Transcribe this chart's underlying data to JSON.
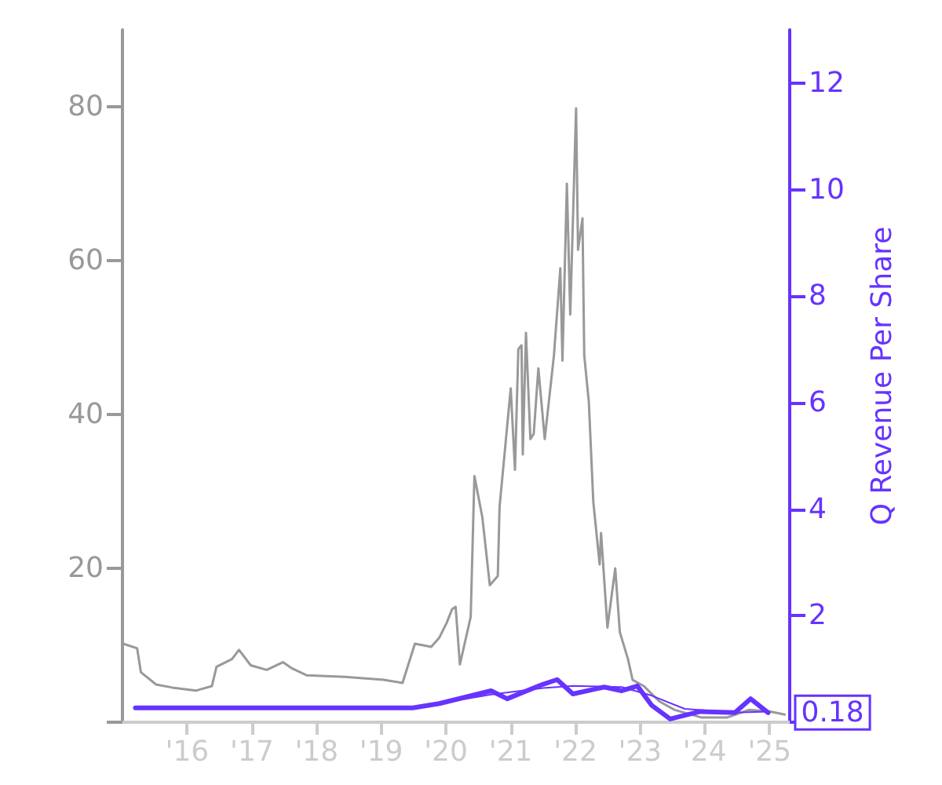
{
  "chart_data": {
    "type": "line",
    "y2label": "Q Revenue Per Share",
    "xlim": [
      "2015-01-01",
      "2025-04-25"
    ],
    "xticks": [
      {
        "value": "2016-01-01",
        "label": "'16"
      },
      {
        "value": "2017-01-01",
        "label": "'17"
      },
      {
        "value": "2018-01-01",
        "label": "'18"
      },
      {
        "value": "2019-01-01",
        "label": "'19"
      },
      {
        "value": "2020-01-01",
        "label": "'20"
      },
      {
        "value": "2021-01-01",
        "label": "'21"
      },
      {
        "value": "2022-01-01",
        "label": "'22"
      },
      {
        "value": "2023-01-01",
        "label": "'23"
      },
      {
        "value": "2024-01-01",
        "label": "'24"
      },
      {
        "value": "2025-01-01",
        "label": "'25"
      }
    ],
    "ylim": [
      0,
      90
    ],
    "yticks": [
      {
        "value": 0,
        "label": null
      },
      20,
      40,
      60,
      80
    ],
    "y2lim": [
      0,
      13
    ],
    "y2ticks": [
      {
        "value": 0,
        "label": null
      },
      2,
      4,
      6,
      8,
      10,
      12
    ],
    "grid": false,
    "marker": "none",
    "series": [
      {
        "color": "#999999",
        "x": [
          "2015-01-05",
          "2015-03-25",
          "2015-04-15",
          "2015-07-10",
          "2015-10-10",
          "2016-02-20",
          "2016-05-20",
          "2016-06-15",
          "2016-09-10",
          "2016-10-20",
          "2016-12-25",
          "2017-03-25",
          "2017-06-25",
          "2017-08-15",
          "2017-11-05",
          "2018-06-10",
          "2019-01-15",
          "2019-05-01",
          "2019-07-10",
          "2019-10-10",
          "2019-11-25",
          "2020-01-05",
          "2020-02-05",
          "2020-02-25",
          "2020-03-20",
          "2020-05-20",
          "2020-06-10",
          "2020-07-25",
          "2020-09-05",
          "2020-10-20",
          "2020-10-30",
          "2021-01-01",
          "2021-01-25",
          "2021-02-13",
          "2021-03-03",
          "2021-03-10",
          "2021-03-28",
          "2021-04-22",
          "2021-05-11",
          "2021-06-06",
          "2021-07-12",
          "2021-09-02",
          "2021-10-08",
          "2021-10-20",
          "2021-11-14",
          "2021-12-03",
          "2022-01-05",
          "2022-01-16",
          "2022-02-10",
          "2022-02-20",
          "2022-03-18",
          "2022-04-12",
          "2022-05-18",
          "2022-05-26",
          "2022-07-01",
          "2022-08-14",
          "2022-09-09",
          "2022-10-25",
          "2022-11-20",
          "2023-01-22",
          "2023-04-20",
          "2023-07-16",
          "2023-12-16",
          "2024-05-05",
          "2024-09-06",
          "2025-01-01",
          "2025-03-28"
        ],
        "values": [
          10.2,
          9.6,
          6.5,
          4.9,
          4.5,
          4.1,
          4.7,
          7.2,
          8.2,
          9.4,
          7.4,
          6.8,
          7.8,
          7.0,
          6.1,
          5.9,
          5.5,
          5.1,
          10.2,
          9.8,
          11,
          12.9,
          14.7,
          15,
          7.5,
          13.7,
          32,
          26.6,
          17.8,
          19,
          28,
          43.4,
          32.8,
          48.5,
          49,
          34.8,
          50.6,
          36.8,
          37.5,
          46,
          36.8,
          47.7,
          59,
          47,
          70,
          53,
          79.8,
          61.4,
          65.5,
          47.7,
          41.6,
          28.7,
          20.5,
          24.6,
          12.3,
          20,
          11.7,
          8.2,
          5.5,
          4.7,
          2.7,
          1.6,
          0.6,
          0.6,
          1.6,
          1.4,
          1.0
        ]
      },
      {
        "color": "#6633ff",
        "axis": "y2",
        "x": [
          "2015-03-15",
          "2019-06-28",
          "2020-09-12",
          "2021-07-01",
          "2021-12-18",
          "2022-09-20",
          "2023-03-07",
          "2023-09-10",
          "2024-06-20",
          "2024-12-24"
        ],
        "values": [
          0.27,
          0.27,
          0.52,
          0.64,
          0.68,
          0.66,
          0.5,
          0.25,
          0.18,
          0.2
        ]
      },
      {
        "color": "#6633ff",
        "axis": "y2",
        "x": [
          "2015-03-15",
          "2019-06-28",
          "2019-11-25",
          "2020-09-12",
          "2020-12-12",
          "2021-07-01",
          "2021-09-20",
          "2021-12-18",
          "2022-06-13",
          "2022-09-20",
          "2022-12-17",
          "2023-03-07",
          "2023-06-20",
          "2023-12-06",
          "2024-06-20",
          "2024-09-16",
          "2024-12-24"
        ],
        "values": [
          0.27,
          0.27,
          0.35,
          0.59,
          0.44,
          0.71,
          0.8,
          0.53,
          0.66,
          0.59,
          0.68,
          0.32,
          0.06,
          0.2,
          0.18,
          0.44,
          0.18
        ],
        "value_labels": [
          null,
          null,
          null,
          null,
          null,
          null,
          null,
          null,
          null,
          null,
          null,
          null,
          null,
          null,
          null,
          null,
          "0.18"
        ]
      }
    ]
  }
}
